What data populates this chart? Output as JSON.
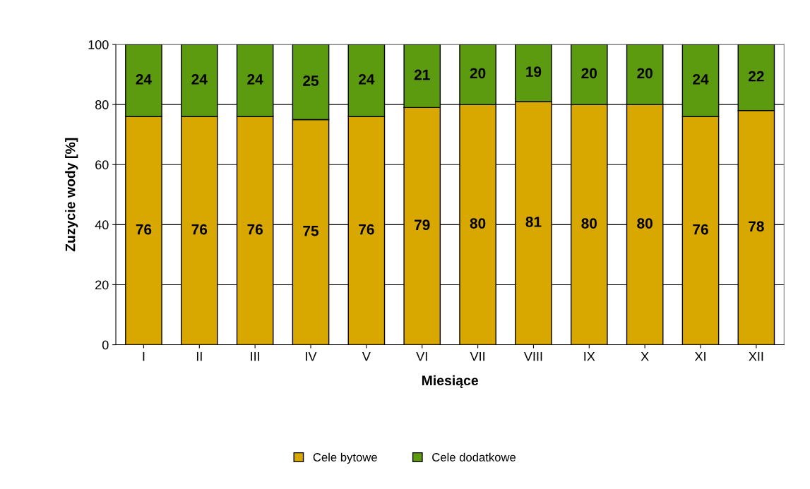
{
  "chart_data": {
    "type": "bar",
    "stacked": true,
    "xlabel": "Miesiące",
    "ylabel": "Zuzycie wody [%]",
    "categories": [
      "I",
      "II",
      "III",
      "IV",
      "V",
      "VI",
      "VII",
      "VIII",
      "IX",
      "X",
      "XI",
      "XII"
    ],
    "series": [
      {
        "name": "Cele bytowe",
        "color": "#d9a800",
        "values": [
          76,
          76,
          76,
          75,
          76,
          79,
          80,
          81,
          80,
          80,
          76,
          78
        ]
      },
      {
        "name": "Cele dodatkowe",
        "color": "#5c9a10",
        "values": [
          24,
          24,
          24,
          25,
          24,
          21,
          20,
          19,
          20,
          20,
          24,
          22
        ]
      }
    ],
    "ylim": [
      0,
      100
    ],
    "yticks": [
      0,
      20,
      40,
      60,
      80,
      100
    ],
    "grid": "y",
    "legend": "bottom",
    "data_labels": true
  }
}
